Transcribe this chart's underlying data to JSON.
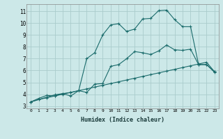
{
  "xlabel": "Humidex (Indice chaleur)",
  "bg_color": "#cce8e8",
  "grid_color": "#aacccc",
  "line_color": "#1a6b6b",
  "xlim": [
    -0.5,
    23.5
  ],
  "ylim": [
    2.8,
    11.6
  ],
  "yticks": [
    3,
    4,
    5,
    6,
    7,
    8,
    9,
    10,
    11
  ],
  "xticks": [
    0,
    1,
    2,
    3,
    4,
    5,
    6,
    7,
    8,
    9,
    10,
    11,
    12,
    13,
    14,
    15,
    16,
    17,
    18,
    19,
    20,
    21,
    22,
    23
  ],
  "series1_x": [
    0,
    1,
    2,
    3,
    4,
    5,
    6,
    7,
    8,
    9,
    10,
    11,
    12,
    13,
    14,
    15,
    16,
    17,
    18,
    19,
    20,
    21,
    22,
    23
  ],
  "series1_y": [
    3.35,
    3.65,
    3.9,
    3.85,
    4.05,
    3.85,
    4.3,
    4.15,
    4.85,
    4.9,
    6.35,
    6.5,
    7.0,
    7.6,
    7.5,
    7.35,
    7.65,
    8.15,
    7.75,
    7.7,
    7.8,
    6.5,
    6.5,
    5.85
  ],
  "series2_x": [
    0,
    1,
    2,
    3,
    4,
    5,
    6,
    7,
    8,
    9,
    10,
    11,
    12,
    13,
    14,
    15,
    16,
    17,
    18,
    19,
    20,
    21,
    22,
    23
  ],
  "series2_y": [
    3.35,
    3.55,
    3.7,
    3.85,
    4.0,
    4.15,
    4.3,
    4.45,
    4.6,
    4.75,
    4.9,
    5.05,
    5.2,
    5.35,
    5.5,
    5.65,
    5.8,
    5.95,
    6.1,
    6.25,
    6.4,
    6.55,
    6.7,
    5.9
  ],
  "series3_x": [
    0,
    3,
    4,
    5,
    6,
    7,
    8,
    9,
    10,
    11,
    12,
    13,
    14,
    15,
    16,
    17,
    18,
    19,
    20,
    21,
    22,
    23
  ],
  "series3_y": [
    3.35,
    3.95,
    4.05,
    4.15,
    4.3,
    7.0,
    7.5,
    9.0,
    9.85,
    9.95,
    9.3,
    9.5,
    10.35,
    10.4,
    11.05,
    11.1,
    10.3,
    9.7,
    9.7,
    6.5,
    6.5,
    5.9
  ]
}
